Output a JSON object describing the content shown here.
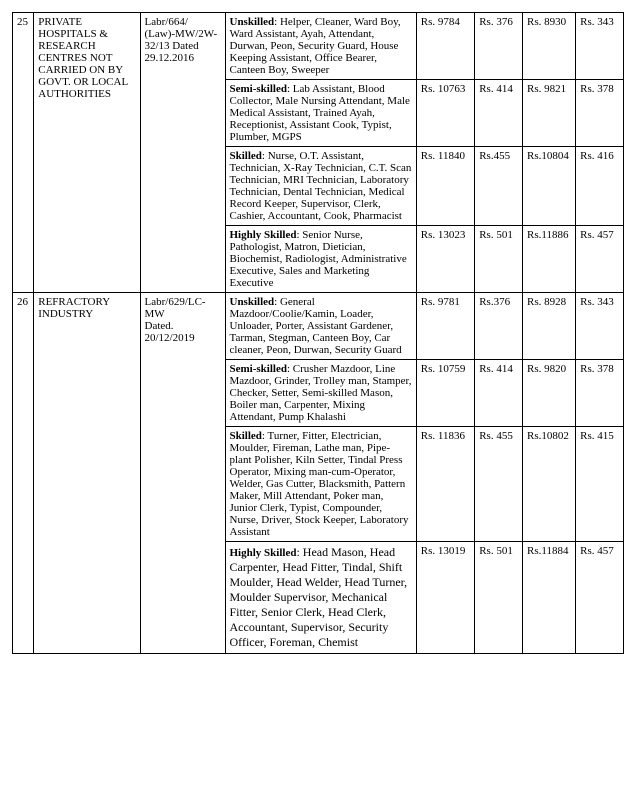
{
  "rows": [
    {
      "sr": "25",
      "industry": "PRIVATE HOSPITALS & RESEARCH CENTRES NOT CARRIED ON BY GOVT. OR LOCAL AUTHORITIES",
      "ref": "Labr/664/ (Law)-MW/2W-32/13 Dated 29.12.2016",
      "rowspan": 4,
      "lvl_bold": "Unskilled",
      "lvl_rest": ": Helper, Cleaner, Ward Boy, Ward Assistant, Ayah, Attendant, Durwan, Peon, Security Guard, House Keeping Assistant, Office Bearer, Canteen Boy, Sweeper",
      "a1": "Rs. 9784",
      "a2": "Rs. 376",
      "a3": "Rs. 8930",
      "a4": "Rs. 343"
    },
    {
      "lvl_bold": "Semi-skilled",
      "lvl_rest": ": Lab Assistant, Blood Collector, Male Nursing Attendant, Male Medical Assistant, Trained Ayah, Receptionist, Assistant Cook, Typist, Plumber, MGPS",
      "a1": "Rs. 10763",
      "a2": "Rs. 414",
      "a3": "Rs. 9821",
      "a4": "Rs. 378"
    },
    {
      "lvl_bold": "Skilled",
      "lvl_rest": ": Nurse, O.T. Assistant, Technician, X-Ray Technician, C.T. Scan Technician, MRI Technician, Laboratory Technician, Dental Technician, Medical Record Keeper, Supervisor, Clerk, Cashier, Accountant, Cook, Pharmacist",
      "a1": "Rs. 11840",
      "a2": "Rs.455",
      "a3": "Rs.10804",
      "a4": "Rs. 416"
    },
    {
      "lvl_bold": "Highly Skilled",
      "lvl_rest": ":  Senior Nurse, Pathologist, Matron, Dietician, Biochemist, Radiologist, Administrative Executive, Sales and Marketing Executive",
      "a1": "Rs. 13023",
      "a2": "Rs. 501",
      "a3": "Rs.11886",
      "a4": "Rs. 457"
    },
    {
      "sr": "26",
      "industry": "REFRACTORY INDUSTRY",
      "ref": "Labr/629/LC-MW\nDated. 20/12/2019",
      "rowspan": 4,
      "lvl_bold": "Unskilled",
      "lvl_rest": ": General Mazdoor/Coolie/Kamin, Loader, Unloader, Porter, Assistant Gardener, Tarman, Stegman, Canteen Boy, Car cleaner, Peon, Durwan, Security Guard",
      "a1": "Rs. 9781",
      "a2": "Rs.376",
      "a3": "Rs. 8928",
      "a4": "Rs. 343"
    },
    {
      "lvl_bold": "Semi-skilled",
      "lvl_rest": ": Crusher Mazdoor, Line Mazdoor, Grinder, Trolley man, Stamper, Checker, Setter, Semi-skilled Mason, Boiler man, Carpenter, Mixing Attendant, Pump Khalashi",
      "a1": "Rs. 10759",
      "a2": "Rs. 414",
      "a3": "Rs. 9820",
      "a4": "Rs. 378"
    },
    {
      "lvl_bold": "Skilled",
      "lvl_rest": ": Turner, Fitter, Electrician, Moulder, Fireman, Lathe man, Pipe-plant Polisher, Kiln Setter, Tindal Press Operator, Mixing man-cum-Operator, Welder, Gas Cutter, Blacksmith, Pattern Maker, Mill Attendant, Poker man, Junior Clerk, Typist, Compounder, Nurse, Driver, Stock Keeper, Laboratory Assistant",
      "a1": "Rs. 11836",
      "a2": "Rs. 455",
      "a3": "Rs.10802",
      "a4": "Rs. 415"
    },
    {
      "lvl_bold": "Highly Skilled",
      "lvl_rest_span": ": Head Mason, Head Carpenter, Head Fitter, Tindal, Shift Moulder, Head Welder, Head Turner, Moulder Supervisor, Mechanical Fitter, Senior Clerk, Head Clerk, Accountant, Supervisor, Security Officer, Foreman, Chemist",
      "a1": "Rs. 13019",
      "a2": "Rs. 501",
      "a3": "Rs.11884",
      "a4": "Rs. 457"
    }
  ]
}
